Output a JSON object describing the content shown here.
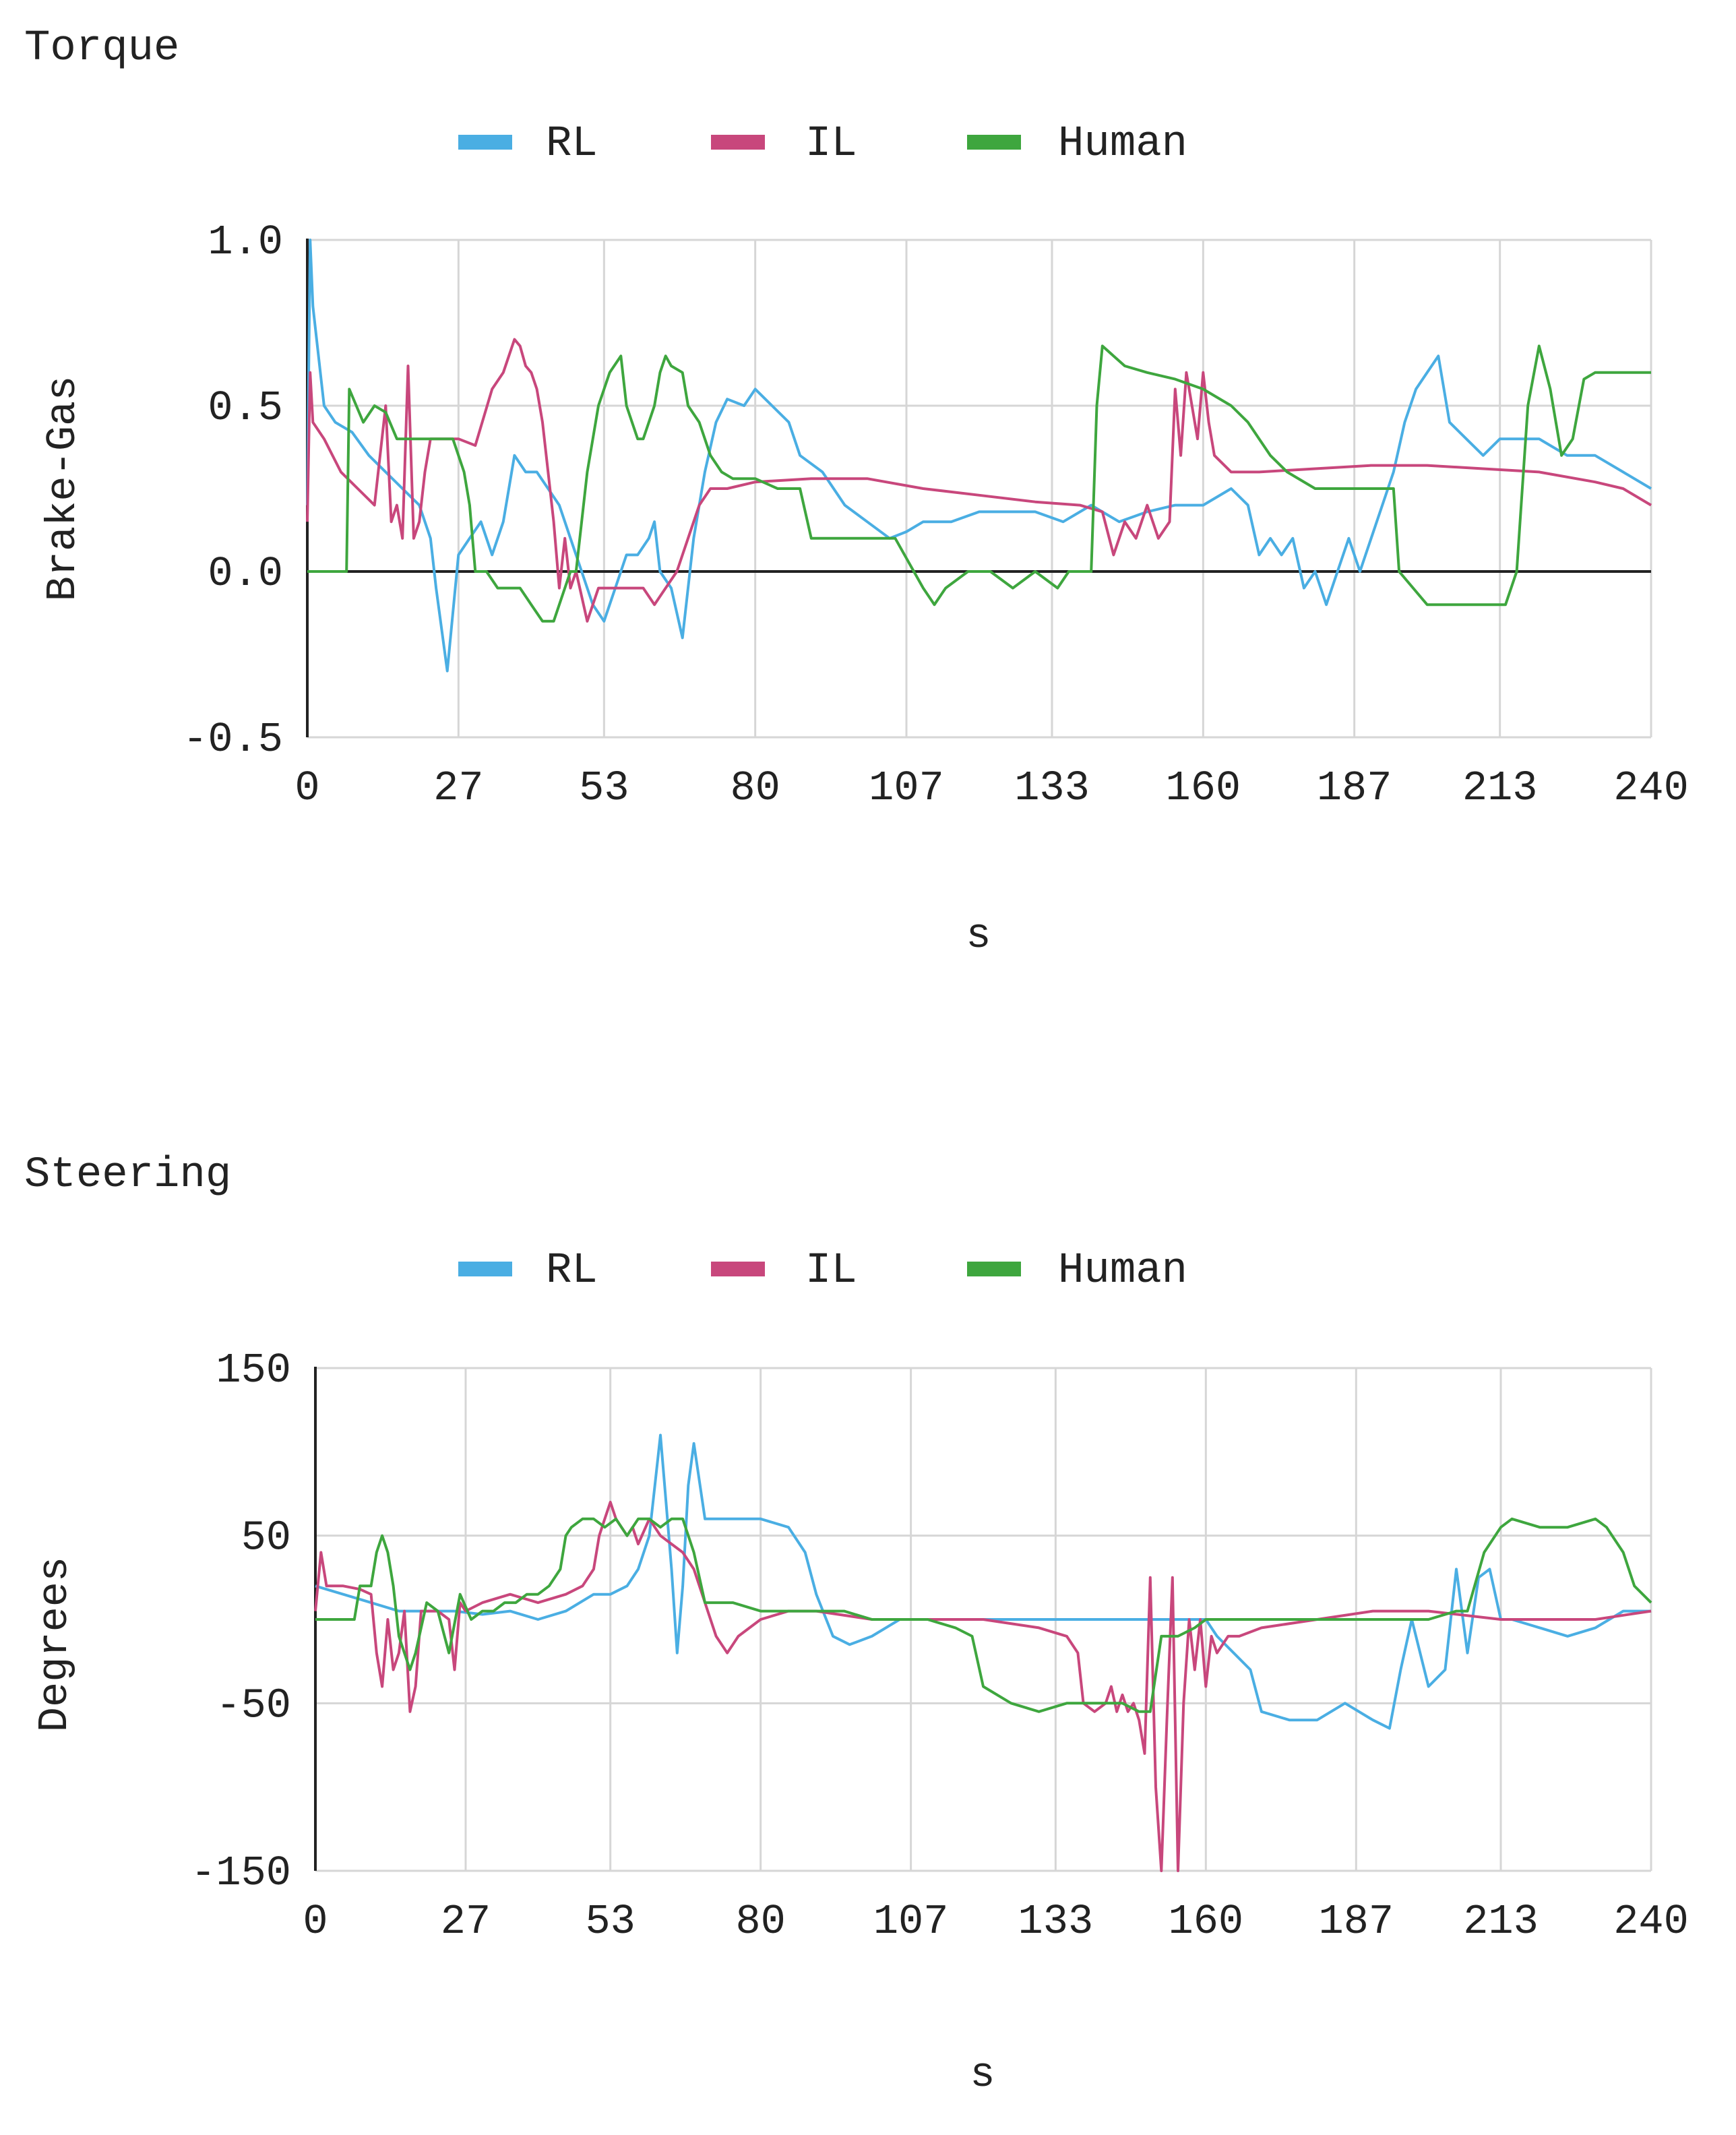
{
  "colors": {
    "rl": "#4aaee3",
    "il": "#c8477c",
    "human": "#3ea63e",
    "grid": "#d6d6d6",
    "axis": "#222222"
  },
  "chart_data": [
    {
      "type": "line",
      "title": "Torque",
      "xlabel": "s",
      "ylabel": "Brake-Gas",
      "xlim": [
        0,
        240
      ],
      "ylim": [
        -0.5,
        1.0
      ],
      "xticks": [
        "0",
        "27",
        "53",
        "80",
        "107",
        "133",
        "160",
        "187",
        "213",
        "240"
      ],
      "yticks": [
        "1.0",
        "0.5",
        "0.0",
        "-0.5"
      ],
      "legend": [
        "RL",
        "IL",
        "Human"
      ],
      "legend_position": "top",
      "series": [
        {
          "name": "RL",
          "x": [
            0,
            0.5,
            1,
            3,
            5,
            8,
            11,
            14,
            17,
            20,
            22,
            23,
            25,
            27,
            29,
            31,
            33,
            35,
            37,
            39,
            41,
            43,
            45,
            47,
            49,
            51,
            53,
            55,
            57,
            59,
            61,
            62,
            63,
            65,
            67,
            69,
            71,
            73,
            75,
            78,
            80,
            83,
            86,
            88,
            92,
            96,
            100,
            104,
            107,
            110,
            115,
            120,
            125,
            130,
            135,
            140,
            145,
            150,
            155,
            160,
            165,
            168,
            170,
            172,
            174,
            176,
            178,
            180,
            182,
            184,
            186,
            188,
            190,
            192,
            194,
            196,
            198,
            200,
            202,
            204,
            207,
            210,
            213,
            216,
            220,
            225,
            230,
            235,
            240
          ],
          "y": [
            0.2,
            1.0,
            0.8,
            0.5,
            0.45,
            0.42,
            0.35,
            0.3,
            0.25,
            0.2,
            0.1,
            -0.05,
            -0.3,
            0.05,
            0.1,
            0.15,
            0.05,
            0.15,
            0.35,
            0.3,
            0.3,
            0.25,
            0.2,
            0.1,
            0.0,
            -0.1,
            -0.15,
            -0.05,
            0.05,
            0.05,
            0.1,
            0.15,
            0.0,
            -0.05,
            -0.2,
            0.1,
            0.3,
            0.45,
            0.52,
            0.5,
            0.55,
            0.5,
            0.45,
            0.35,
            0.3,
            0.2,
            0.15,
            0.1,
            0.12,
            0.15,
            0.15,
            0.18,
            0.18,
            0.18,
            0.15,
            0.2,
            0.15,
            0.18,
            0.2,
            0.2,
            0.25,
            0.2,
            0.05,
            0.1,
            0.05,
            0.1,
            -0.05,
            0.0,
            -0.1,
            0.0,
            0.1,
            0.0,
            0.1,
            0.2,
            0.3,
            0.45,
            0.55,
            0.6,
            0.65,
            0.45,
            0.4,
            0.35,
            0.4,
            0.4,
            0.4,
            0.35,
            0.35,
            0.3,
            0.25
          ]
        },
        {
          "name": "IL",
          "x": [
            0,
            0.5,
            1,
            3,
            6,
            9,
            12,
            14,
            15,
            16,
            17,
            18,
            19,
            20,
            21,
            22,
            24,
            27,
            30,
            33,
            35,
            36,
            37,
            38,
            39,
            40,
            41,
            42,
            43,
            44,
            45,
            46,
            47,
            48,
            50,
            52,
            55,
            58,
            60,
            62,
            64,
            66,
            67,
            68,
            70,
            72,
            75,
            80,
            90,
            100,
            110,
            120,
            130,
            138,
            142,
            144,
            146,
            148,
            150,
            152,
            154,
            155,
            156,
            157,
            158,
            159,
            160,
            161,
            162,
            165,
            170,
            180,
            190,
            200,
            210,
            220,
            230,
            235,
            240
          ],
          "y": [
            0.15,
            0.6,
            0.45,
            0.4,
            0.3,
            0.25,
            0.2,
            0.5,
            0.15,
            0.2,
            0.1,
            0.62,
            0.1,
            0.15,
            0.3,
            0.4,
            0.4,
            0.4,
            0.38,
            0.55,
            0.6,
            0.65,
            0.7,
            0.68,
            0.62,
            0.6,
            0.55,
            0.45,
            0.3,
            0.15,
            -0.05,
            0.1,
            -0.05,
            0.0,
            -0.15,
            -0.05,
            -0.05,
            -0.05,
            -0.05,
            -0.1,
            -0.05,
            0.0,
            0.05,
            0.1,
            0.2,
            0.25,
            0.25,
            0.27,
            0.28,
            0.28,
            0.25,
            0.23,
            0.21,
            0.2,
            0.18,
            0.05,
            0.15,
            0.1,
            0.2,
            0.1,
            0.15,
            0.55,
            0.35,
            0.6,
            0.5,
            0.4,
            0.6,
            0.45,
            0.35,
            0.3,
            0.3,
            0.31,
            0.32,
            0.32,
            0.31,
            0.3,
            0.27,
            0.25,
            0.2
          ]
        },
        {
          "name": "Human",
          "x": [
            0,
            7,
            7.5,
            10,
            12,
            14,
            16,
            18,
            20,
            26,
            28,
            29,
            30,
            32,
            34,
            36,
            38,
            40,
            42,
            44,
            46,
            47,
            48,
            50,
            52,
            54,
            56,
            57,
            58,
            59,
            60,
            62,
            63,
            64,
            65,
            67,
            68,
            70,
            72,
            74,
            76,
            80,
            84,
            86,
            88,
            90,
            95,
            100,
            105,
            110,
            112,
            114,
            118,
            122,
            126,
            130,
            134,
            136,
            138,
            140,
            141,
            142,
            144,
            146,
            150,
            155,
            160,
            165,
            168,
            170,
            172,
            175,
            180,
            185,
            190,
            194,
            195,
            200,
            205,
            210,
            214,
            216,
            218,
            220,
            222,
            224,
            226,
            228,
            230,
            235,
            240
          ],
          "y": [
            0.0,
            0.0,
            0.55,
            0.45,
            0.5,
            0.48,
            0.4,
            0.4,
            0.4,
            0.4,
            0.3,
            0.2,
            0.0,
            0.0,
            -0.05,
            -0.05,
            -0.05,
            -0.1,
            -0.15,
            -0.15,
            -0.05,
            0.0,
            0.0,
            0.3,
            0.5,
            0.6,
            0.65,
            0.5,
            0.45,
            0.4,
            0.4,
            0.5,
            0.6,
            0.65,
            0.62,
            0.6,
            0.5,
            0.45,
            0.35,
            0.3,
            0.28,
            0.28,
            0.25,
            0.25,
            0.25,
            0.1,
            0.1,
            0.1,
            0.1,
            -0.05,
            -0.1,
            -0.05,
            0.0,
            0.0,
            -0.05,
            0.0,
            -0.05,
            0.0,
            0.0,
            0.0,
            0.5,
            0.68,
            0.65,
            0.62,
            0.6,
            0.58,
            0.55,
            0.5,
            0.45,
            0.4,
            0.35,
            0.3,
            0.25,
            0.25,
            0.25,
            0.25,
            0.0,
            -0.1,
            -0.1,
            -0.1,
            -0.1,
            0.0,
            0.5,
            0.68,
            0.55,
            0.35,
            0.4,
            0.58,
            0.6,
            0.6,
            0.6
          ]
        }
      ]
    },
    {
      "type": "line",
      "title": "Steering",
      "xlabel": "s",
      "ylabel": "Degrees",
      "xlim": [
        0,
        240
      ],
      "ylim": [
        -150,
        150
      ],
      "xticks": [
        "0",
        "27",
        "53",
        "80",
        "107",
        "133",
        "160",
        "187",
        "213",
        "240"
      ],
      "yticks": [
        "150",
        "50",
        "-50",
        "-150"
      ],
      "legend": [
        "RL",
        "IL",
        "Human"
      ],
      "legend_position": "top",
      "series": [
        {
          "name": "RL",
          "x": [
            0,
            5,
            10,
            15,
            20,
            25,
            30,
            35,
            40,
            45,
            50,
            53,
            56,
            58,
            60,
            62,
            63,
            64,
            65,
            66,
            67,
            68,
            70,
            75,
            80,
            85,
            88,
            90,
            93,
            96,
            100,
            105,
            110,
            120,
            130,
            140,
            150,
            160,
            162,
            165,
            168,
            170,
            175,
            180,
            185,
            190,
            193,
            195,
            197,
            200,
            203,
            205,
            207,
            209,
            211,
            213,
            215,
            220,
            225,
            230,
            235,
            240
          ],
          "y": [
            20,
            15,
            10,
            5,
            5,
            5,
            3,
            5,
            0,
            5,
            15,
            15,
            20,
            30,
            50,
            110,
            70,
            30,
            -20,
            20,
            80,
            105,
            60,
            60,
            60,
            55,
            40,
            15,
            -10,
            -15,
            -10,
            0,
            0,
            0,
            0,
            0,
            0,
            0,
            -10,
            -20,
            -30,
            -55,
            -60,
            -60,
            -50,
            -60,
            -65,
            -30,
            0,
            -40,
            -30,
            30,
            -20,
            25,
            30,
            0,
            0,
            -5,
            -10,
            -5,
            5,
            5
          ]
        },
        {
          "name": "IL",
          "x": [
            0,
            1,
            2,
            3,
            5,
            8,
            10,
            11,
            12,
            13,
            14,
            15,
            16,
            17,
            18,
            19,
            20,
            22,
            24,
            25,
            26,
            27,
            30,
            35,
            40,
            45,
            48,
            50,
            51,
            52,
            53,
            54,
            55,
            56,
            57,
            58,
            60,
            62,
            64,
            66,
            68,
            70,
            72,
            73,
            74,
            75,
            76,
            78,
            80,
            85,
            90,
            100,
            110,
            120,
            130,
            135,
            137,
            138,
            140,
            142,
            143,
            144,
            145,
            146,
            147,
            148,
            149,
            150,
            151,
            152,
            153,
            154,
            155,
            156,
            157,
            158,
            159,
            160,
            161,
            162,
            164,
            166,
            170,
            180,
            190,
            200,
            213,
            230,
            240
          ],
          "y": [
            5,
            40,
            20,
            20,
            20,
            18,
            15,
            -20,
            -40,
            0,
            -30,
            -20,
            5,
            -55,
            -40,
            5,
            5,
            5,
            0,
            -30,
            10,
            5,
            10,
            15,
            10,
            15,
            20,
            30,
            50,
            60,
            70,
            60,
            55,
            50,
            55,
            45,
            60,
            50,
            45,
            40,
            30,
            10,
            -10,
            -15,
            -20,
            -15,
            -10,
            -5,
            0,
            5,
            5,
            0,
            0,
            0,
            -5,
            -10,
            -20,
            -50,
            -55,
            -50,
            -40,
            -55,
            -45,
            -55,
            -50,
            -60,
            -80,
            25,
            -100,
            -150,
            -60,
            25,
            -150,
            -50,
            0,
            -30,
            0,
            -40,
            -10,
            -20,
            -10,
            -10,
            -5,
            0,
            5,
            5,
            0,
            0,
            5
          ]
        },
        {
          "name": "Human",
          "x": [
            0,
            7,
            8,
            10,
            11,
            12,
            13,
            14,
            15,
            16,
            17,
            18,
            20,
            22,
            24,
            26,
            28,
            30,
            32,
            34,
            36,
            38,
            40,
            42,
            44,
            45,
            46,
            48,
            50,
            52,
            54,
            56,
            58,
            60,
            62,
            64,
            66,
            68,
            70,
            75,
            80,
            85,
            90,
            95,
            100,
            105,
            110,
            115,
            118,
            120,
            125,
            130,
            135,
            140,
            145,
            148,
            150,
            152,
            155,
            158,
            160,
            165,
            170,
            180,
            190,
            200,
            205,
            207,
            210,
            213,
            215,
            220,
            225,
            230,
            232,
            235,
            237,
            240
          ],
          "y": [
            0,
            0,
            20,
            20,
            40,
            50,
            40,
            20,
            -10,
            -20,
            -30,
            -20,
            10,
            5,
            -20,
            15,
            0,
            5,
            5,
            10,
            10,
            15,
            15,
            20,
            30,
            50,
            55,
            60,
            60,
            55,
            60,
            50,
            60,
            60,
            55,
            60,
            60,
            40,
            10,
            10,
            5,
            5,
            5,
            5,
            0,
            0,
            0,
            -5,
            -10,
            -40,
            -50,
            -55,
            -50,
            -50,
            -50,
            -55,
            -55,
            -10,
            -10,
            -5,
            0,
            0,
            0,
            0,
            0,
            0,
            5,
            5,
            40,
            55,
            60,
            55,
            55,
            60,
            55,
            40,
            20,
            10
          ]
        }
      ]
    }
  ]
}
